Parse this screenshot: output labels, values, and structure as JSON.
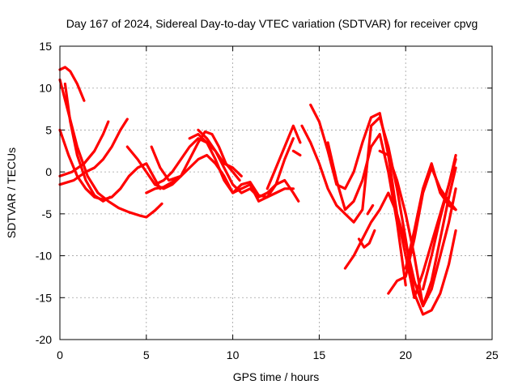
{
  "chart_data": {
    "type": "line",
    "title": "Day 167 of 2024, Sidereal Day-to-day VTEC variation (SDTVAR) for receiver cpvg",
    "xlabel": "GPS time / hours",
    "ylabel": "SDTVAR / TECUs",
    "xlim": [
      0,
      25
    ],
    "ylim": [
      -20,
      15
    ],
    "xticks": [
      0,
      5,
      10,
      15,
      20,
      25
    ],
    "yticks": [
      -20,
      -15,
      -10,
      -5,
      0,
      5,
      10,
      15
    ],
    "grid": true,
    "color": "#ff0000",
    "series": [
      {
        "name": "s1",
        "x": [
          0.0,
          0.3,
          0.6,
          1.0,
          1.4
        ],
        "y": [
          12.2,
          12.5,
          12.0,
          10.5,
          8.5
        ]
      },
      {
        "name": "s2",
        "x": [
          0.0,
          0.5,
          1.0,
          1.6,
          2.2,
          2.8,
          3.4,
          4.0,
          4.6,
          5.0,
          5.5,
          5.9
        ],
        "y": [
          11.0,
          7.0,
          3.0,
          -0.5,
          -2.5,
          -3.5,
          -4.3,
          -4.8,
          -5.2,
          -5.4,
          -4.6,
          -3.8
        ]
      },
      {
        "name": "s3",
        "x": [
          0.0,
          0.5,
          1.0,
          1.5,
          2.0,
          2.5,
          3.0,
          3.5,
          4.0,
          4.5,
          5.0,
          5.4,
          5.8
        ],
        "y": [
          5.0,
          2.0,
          -0.5,
          -2.0,
          -3.0,
          -3.3,
          -3.0,
          -2.0,
          -0.5,
          0.5,
          1.0,
          -0.5,
          -2.0
        ]
      },
      {
        "name": "s4",
        "x": [
          0.0,
          0.7,
          1.4,
          2.0,
          2.5,
          2.8
        ],
        "y": [
          -0.5,
          0.0,
          1.0,
          2.5,
          4.5,
          6.0
        ]
      },
      {
        "name": "s5",
        "x": [
          0.0,
          0.8,
          1.5,
          2.0,
          2.5,
          3.0,
          3.5,
          3.9
        ],
        "y": [
          -1.5,
          -1.0,
          0.0,
          0.5,
          1.5,
          3.0,
          5.0,
          6.3
        ]
      },
      {
        "name": "s6",
        "x": [
          0.3,
          0.6,
          1.0,
          1.5,
          2.0,
          2.5,
          2.9
        ],
        "y": [
          10.5,
          6.0,
          2.0,
          -1.0,
          -2.8,
          -3.5,
          -3.0
        ]
      },
      {
        "name": "s7",
        "x": [
          3.9,
          4.5,
          5.0,
          5.5,
          6.0,
          6.5,
          7.0
        ],
        "y": [
          3.0,
          1.5,
          0.0,
          -1.5,
          -2.0,
          -1.5,
          -0.5
        ]
      },
      {
        "name": "s8",
        "x": [
          5.0,
          5.5,
          6.0,
          6.5,
          7.0,
          7.5,
          8.0,
          8.5,
          9.0,
          9.5,
          10.0,
          10.5,
          11.0,
          11.5,
          12.0,
          12.5,
          13.0,
          13.5,
          13.8
        ],
        "y": [
          -2.5,
          -2.0,
          -1.8,
          -1.2,
          -0.5,
          0.5,
          1.5,
          2.0,
          1.0,
          -0.5,
          -2.5,
          -1.5,
          -1.2,
          -2.8,
          -3.0,
          -1.5,
          -1.0,
          -2.5,
          -3.5
        ]
      },
      {
        "name": "s9",
        "x": [
          5.3,
          5.8,
          6.3,
          7.0,
          7.5,
          8.0,
          8.4,
          8.8,
          9.2,
          9.6,
          10.0,
          10.4
        ],
        "y": [
          3.0,
          0.5,
          -1.0,
          -0.5,
          1.5,
          3.5,
          4.8,
          4.5,
          3.0,
          1.0,
          0.0,
          -1.0
        ]
      },
      {
        "name": "s10",
        "x": [
          5.5,
          6.0,
          6.5,
          7.0,
          7.5,
          8.0,
          8.5,
          9.0,
          9.5,
          10.0,
          10.5
        ],
        "y": [
          -1.5,
          -1.0,
          0.0,
          1.5,
          3.0,
          4.0,
          3.5,
          2.5,
          1.0,
          0.5,
          -0.5
        ]
      },
      {
        "name": "s11",
        "x": [
          7.5,
          8.0,
          8.5,
          9.0,
          9.5,
          10.0,
          10.5,
          11.0,
          11.5,
          12.0,
          12.5,
          13.0,
          13.5
        ],
        "y": [
          4.0,
          4.5,
          3.5,
          1.5,
          -1.0,
          -2.5,
          -2.0,
          -1.5,
          -3.5,
          -3.0,
          -2.5,
          -2.0,
          -2.0
        ]
      },
      {
        "name": "s12",
        "x": [
          8.0,
          8.5,
          9.0,
          9.5,
          10.0,
          10.5,
          11.0,
          11.5,
          12.0,
          12.5,
          13.0,
          13.5
        ],
        "y": [
          5.0,
          4.0,
          2.5,
          0.5,
          -1.5,
          -2.5,
          -2.0,
          -3.0,
          -2.5,
          -1.5,
          1.5,
          4.0
        ]
      },
      {
        "name": "s13",
        "x": [
          12.0,
          12.5,
          13.0,
          13.5,
          13.9
        ],
        "y": [
          -2.0,
          0.5,
          3.0,
          5.5,
          3.5
        ]
      },
      {
        "name": "s14",
        "x": [
          13.5,
          13.9
        ],
        "y": [
          2.5,
          2.0
        ]
      },
      {
        "name": "s15",
        "x": [
          14.0,
          14.5,
          15.0,
          15.5,
          16.0,
          16.5,
          17.0,
          17.5,
          18.0,
          18.5,
          19.0,
          19.5,
          20.0,
          20.5,
          21.0,
          21.5,
          22.0,
          22.5,
          22.9
        ],
        "y": [
          5.5,
          3.5,
          1.0,
          -2.0,
          -4.0,
          -5.0,
          -6.0,
          -4.5,
          5.5,
          6.5,
          3.0,
          -2.0,
          -8.0,
          -14.5,
          -17.0,
          -16.5,
          -14.5,
          -11.0,
          -7.0
        ]
      },
      {
        "name": "s16",
        "x": [
          14.5,
          15.0,
          15.5,
          16.0,
          16.5,
          17.0,
          17.5,
          18.0,
          18.5,
          19.0,
          19.5,
          20.0,
          20.5
        ],
        "y": [
          8.0,
          6.0,
          2.5,
          -1.5,
          -2.0,
          0.0,
          3.5,
          6.5,
          7.0,
          2.0,
          -5.0,
          -10.0,
          -15.0
        ]
      },
      {
        "name": "s17",
        "x": [
          15.5,
          16.0,
          16.5,
          17.0,
          17.5,
          18.0,
          18.5,
          19.0,
          19.5,
          20.0
        ],
        "y": [
          3.5,
          -1.0,
          -4.5,
          -3.5,
          -1.0,
          3.0,
          4.5,
          0.0,
          -6.0,
          -13.5
        ]
      },
      {
        "name": "s18",
        "x": [
          16.5,
          17.0,
          17.5,
          18.0,
          18.5,
          19.0,
          19.5,
          20.0,
          20.5,
          21.0,
          21.5,
          22.0,
          22.5,
          22.9
        ],
        "y": [
          -11.5,
          -10.0,
          -8.0,
          -6.0,
          -4.5,
          -2.5,
          -5.0,
          -8.5,
          -13.0,
          -16.0,
          -13.0,
          -8.0,
          -3.0,
          0.5
        ]
      },
      {
        "name": "s19",
        "x": [
          17.3,
          17.6,
          17.9,
          18.2
        ],
        "y": [
          -8.0,
          -9.0,
          -8.5,
          -7.0
        ]
      },
      {
        "name": "s20",
        "x": [
          17.8,
          18.1
        ],
        "y": [
          -5.0,
          -4.0
        ]
      },
      {
        "name": "s21",
        "x": [
          18.5,
          19.0,
          19.5,
          20.0,
          20.5,
          21.0,
          21.5,
          22.0,
          22.5,
          22.9
        ],
        "y": [
          2.5,
          2.0,
          -1.0,
          -5.0,
          -10.0,
          -16.0,
          -14.0,
          -10.0,
          -6.0,
          -2.0
        ]
      },
      {
        "name": "s22",
        "x": [
          19.0,
          19.5,
          20.0,
          20.5,
          21.0,
          21.5,
          22.0,
          22.5,
          22.9
        ],
        "y": [
          -14.5,
          -13.0,
          -12.5,
          -8.0,
          -2.5,
          0.5,
          -2.0,
          -3.5,
          -4.5
        ]
      },
      {
        "name": "s23",
        "x": [
          20.0,
          20.5,
          21.0,
          21.5,
          22.0,
          22.5,
          22.9
        ],
        "y": [
          -11.5,
          -7.0,
          -2.0,
          1.0,
          -2.5,
          -4.0,
          -4.5
        ]
      },
      {
        "name": "s24",
        "x": [
          20.5,
          21.0,
          21.5,
          22.0,
          22.5,
          22.9
        ],
        "y": [
          -15.0,
          -12.0,
          -8.5,
          -5.0,
          -1.5,
          2.0
        ]
      },
      {
        "name": "s25",
        "x": [
          21.0,
          21.5,
          22.0,
          22.5,
          22.9
        ],
        "y": [
          -14.0,
          -10.0,
          -5.5,
          -1.5,
          1.5
        ]
      }
    ]
  }
}
